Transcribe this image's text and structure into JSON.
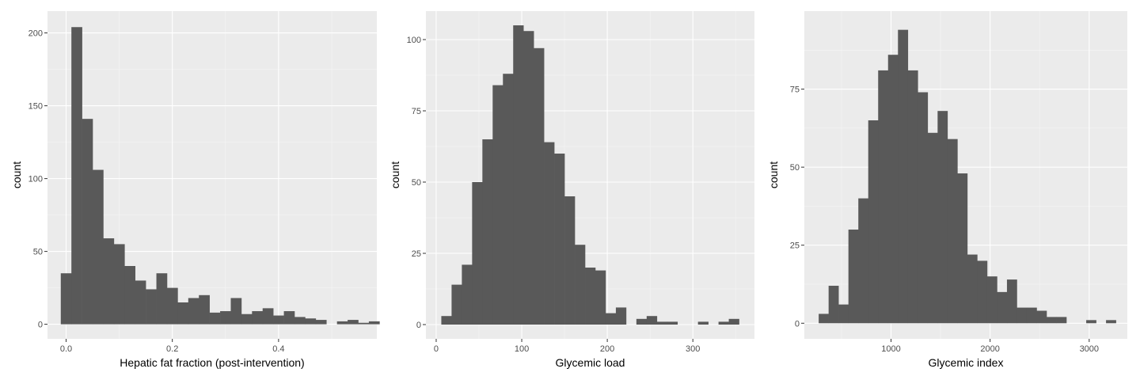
{
  "theme": {
    "panel_bg": "#ebebeb",
    "grid_major": "#ffffff",
    "grid_minor": "#f5f5f5",
    "bar_fill": "#595959",
    "tick_color": "#333333"
  },
  "chart_data": [
    {
      "type": "bar",
      "title": "",
      "xlabel": "Hepatic fat fraction (post-intervention)",
      "ylabel": "count",
      "xlim": [
        -0.035,
        0.585
      ],
      "ylim": [
        -10,
        215
      ],
      "x_ticks": [
        0.0,
        0.2,
        0.4
      ],
      "x_tick_labels": [
        "0.0",
        "0.2",
        "0.4"
      ],
      "y_ticks": [
        0,
        50,
        100,
        150,
        200
      ],
      "y_tick_labels": [
        "0",
        "50",
        "100",
        "150",
        "200"
      ],
      "grid": true,
      "bin_start": -0.01,
      "bin_width": 0.02,
      "values": [
        35,
        204,
        141,
        106,
        59,
        55,
        40,
        30,
        24,
        35,
        25,
        15,
        18,
        20,
        8,
        9,
        18,
        7,
        9,
        11,
        6,
        9,
        5,
        4,
        3,
        0,
        2,
        3,
        1,
        2
      ]
    },
    {
      "type": "bar",
      "title": "",
      "xlabel": "Glycemic load",
      "ylabel": "count",
      "xlim": [
        -12,
        372
      ],
      "ylim": [
        -5,
        110
      ],
      "x_ticks": [
        0,
        100,
        200,
        300
      ],
      "x_tick_labels": [
        "0",
        "100",
        "200",
        "300"
      ],
      "y_ticks": [
        0,
        25,
        50,
        75,
        100
      ],
      "y_tick_labels": [
        "0",
        "25",
        "50",
        "75",
        "100"
      ],
      "grid": true,
      "bin_start": 6,
      "bin_width": 12,
      "values": [
        3,
        14,
        21,
        50,
        65,
        84,
        88,
        105,
        103,
        97,
        64,
        60,
        45,
        28,
        20,
        19,
        4,
        6,
        0,
        2,
        3,
        1,
        1,
        0,
        0,
        1,
        0,
        1,
        2
      ]
    },
    {
      "type": "bar",
      "title": "",
      "xlabel": "Glycemic index",
      "ylabel": "count",
      "xlim": [
        125,
        3385
      ],
      "ylim": [
        -5,
        100
      ],
      "x_ticks": [
        1000,
        2000,
        3000
      ],
      "x_tick_labels": [
        "1000",
        "2000",
        "3000"
      ],
      "y_ticks": [
        0,
        25,
        50,
        75
      ],
      "y_tick_labels": [
        "0",
        "25",
        "50",
        "75"
      ],
      "grid": true,
      "bin_start": 270,
      "bin_width": 100,
      "values": [
        3,
        12,
        6,
        30,
        40,
        65,
        81,
        86,
        94,
        81,
        74,
        61,
        68,
        59,
        48,
        22,
        20,
        15,
        10,
        14,
        5,
        5,
        4,
        2,
        2,
        0,
        0,
        1,
        0,
        1
      ]
    }
  ]
}
